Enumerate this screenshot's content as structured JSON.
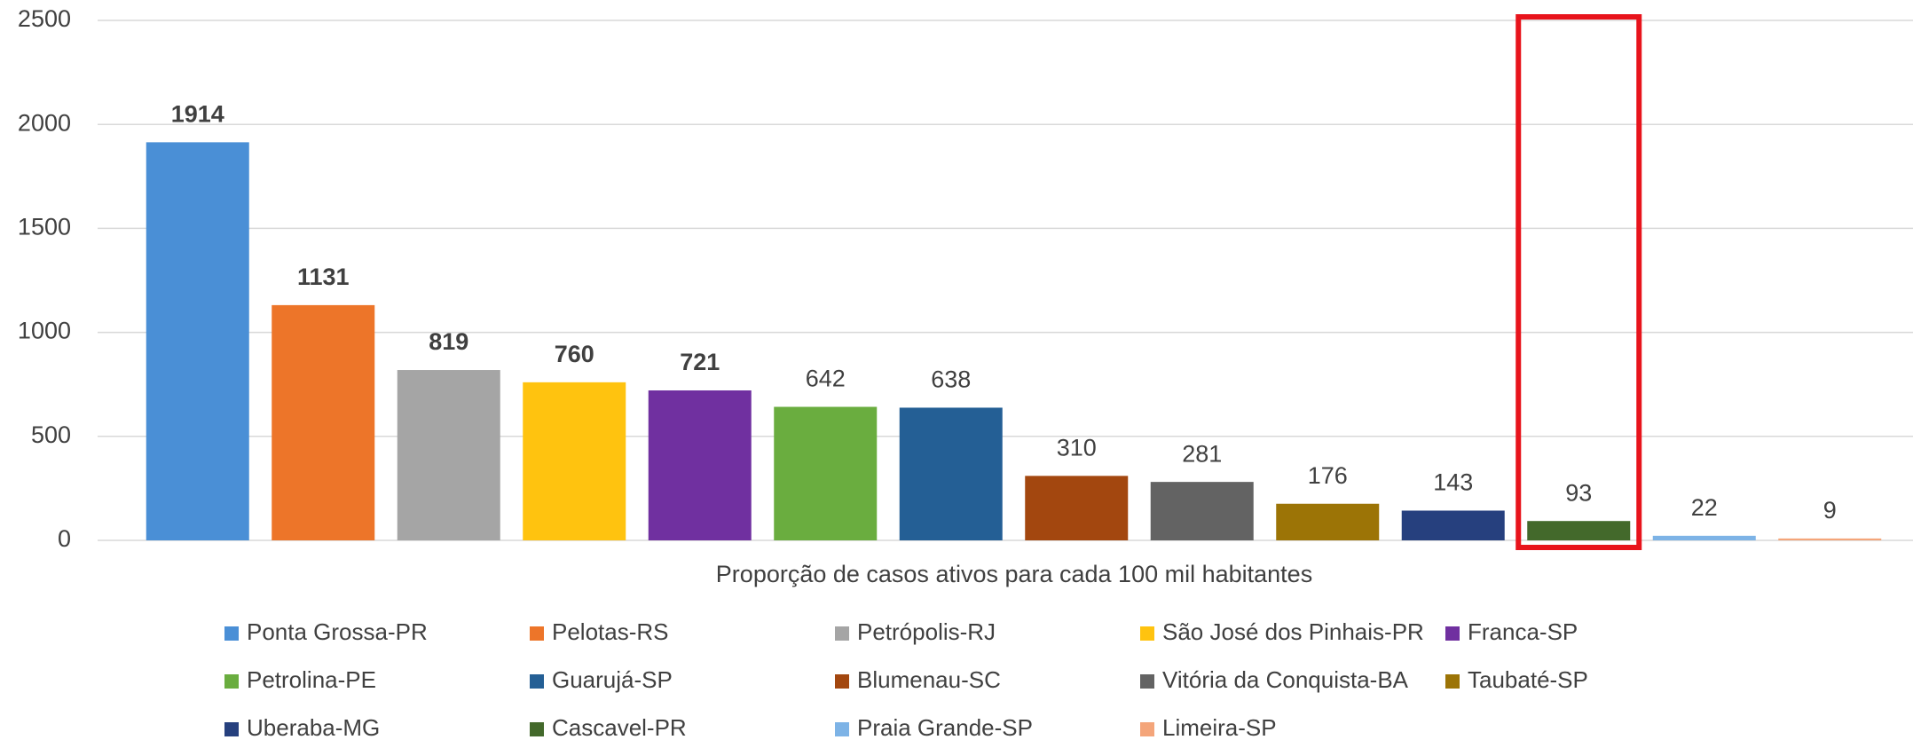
{
  "chart_data": {
    "type": "bar",
    "x_label": "Proporção de casos ativos para cada 100 mil habitantes",
    "series": [
      {
        "name": "Ponta Grossa-PR",
        "color": "#4a8fd6",
        "values": [
          1914
        ]
      },
      {
        "name": "Pelotas-RS",
        "color": "#ed7529",
        "values": [
          1131
        ]
      },
      {
        "name": "Petrópolis-RJ",
        "color": "#a5a5a5",
        "values": [
          819
        ]
      },
      {
        "name": "São José dos Pinhais-PR",
        "color": "#ffc30f",
        "values": [
          760
        ]
      },
      {
        "name": "Franca-SP",
        "color": "#7030a0",
        "values": [
          721
        ]
      },
      {
        "name": "Petrolina-PE",
        "color": "#6aad3f",
        "values": [
          642
        ]
      },
      {
        "name": "Guarujá-SP",
        "color": "#245f95",
        "values": [
          638
        ]
      },
      {
        "name": "Blumenau-SC",
        "color": "#a3470f",
        "values": [
          310
        ]
      },
      {
        "name": "Vitória da Conquista-BA",
        "color": "#636363",
        "values": [
          281
        ]
      },
      {
        "name": "Taubaté-SP",
        "color": "#9c7406",
        "values": [
          176
        ]
      },
      {
        "name": "Uberaba-MG",
        "color": "#26407e",
        "values": [
          143
        ]
      },
      {
        "name": "Cascavel-PR",
        "color": "#43692b",
        "values": [
          93
        ]
      },
      {
        "name": "Praia Grande-SP",
        "color": "#7db3e6",
        "values": [
          22
        ]
      },
      {
        "name": "Limeira-SP",
        "color": "#f4a57a",
        "values": [
          9
        ]
      }
    ],
    "ylim": [
      0,
      2500
    ],
    "yticks": [
      0,
      500,
      1000,
      1500,
      2000,
      2500
    ],
    "grid": true
  }
}
